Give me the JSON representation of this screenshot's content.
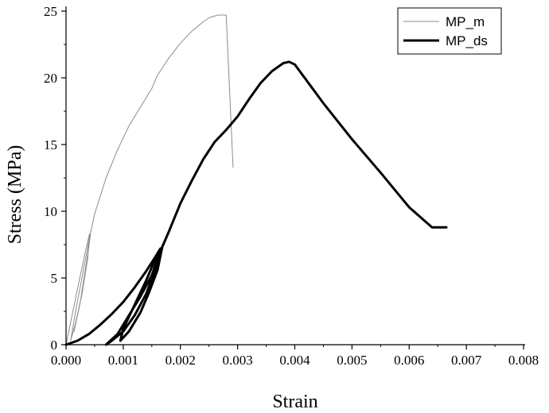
{
  "chart_data": {
    "type": "line",
    "xlabel": "Strain",
    "ylabel": "Stress (MPa)",
    "xlim": [
      0,
      0.008
    ],
    "ylim": [
      0,
      25
    ],
    "x_ticks": [
      "0.000",
      "0.001",
      "0.002",
      "0.003",
      "0.004",
      "0.005",
      "0.006",
      "0.007",
      "0.008"
    ],
    "y_ticks": [
      "0",
      "5",
      "10",
      "15",
      "20",
      "25"
    ],
    "grid": false,
    "legend_position": "top-right",
    "series": [
      {
        "name": "MP_m",
        "color": "#8c8c8c",
        "style": "thin",
        "points": [
          [
            0.0,
            0.0
          ],
          [
            0.00012,
            2.5
          ],
          [
            0.00024,
            5.0
          ],
          [
            0.00034,
            7.0
          ],
          [
            0.00041,
            8.3
          ],
          [
            0.00038,
            6.5
          ],
          [
            0.00028,
            3.8
          ],
          [
            0.00016,
            1.5
          ],
          [
            8e-05,
            0.3
          ],
          [
            0.00018,
            2.8
          ],
          [
            0.0003,
            5.5
          ],
          [
            0.0004,
            7.8
          ],
          [
            0.00043,
            8.4
          ],
          [
            0.00036,
            6.0
          ],
          [
            0.00024,
            3.0
          ],
          [
            0.00014,
            1.0
          ],
          [
            0.00026,
            3.5
          ],
          [
            0.00038,
            6.8
          ],
          [
            0.00043,
            8.4
          ],
          [
            0.0005,
            9.8
          ],
          [
            0.0007,
            12.5
          ],
          [
            0.0009,
            14.6
          ],
          [
            0.0011,
            16.4
          ],
          [
            0.0013,
            17.8
          ],
          [
            0.0015,
            19.2
          ],
          [
            0.0016,
            20.2
          ],
          [
            0.0018,
            21.5
          ],
          [
            0.002,
            22.6
          ],
          [
            0.0022,
            23.5
          ],
          [
            0.0024,
            24.2
          ],
          [
            0.0025,
            24.5
          ],
          [
            0.00265,
            24.7
          ],
          [
            0.0028,
            24.7
          ],
          [
            0.00292,
            13.3
          ]
        ]
      },
      {
        "name": "MP_ds",
        "color": "#000000",
        "style": "thick",
        "points": [
          [
            0.0,
            0.0
          ],
          [
            0.0002,
            0.3
          ],
          [
            0.0004,
            0.8
          ],
          [
            0.0006,
            1.5
          ],
          [
            0.0008,
            2.3
          ],
          [
            0.001,
            3.2
          ],
          [
            0.0012,
            4.3
          ],
          [
            0.0014,
            5.5
          ],
          [
            0.00155,
            6.5
          ],
          [
            0.00165,
            7.2
          ],
          [
            0.00155,
            5.5
          ],
          [
            0.0014,
            3.8
          ],
          [
            0.0012,
            2.2
          ],
          [
            0.001,
            1.0
          ],
          [
            0.0008,
            0.3
          ],
          [
            0.0007,
            0.0
          ],
          [
            0.0009,
            0.8
          ],
          [
            0.0011,
            2.2
          ],
          [
            0.0013,
            3.6
          ],
          [
            0.0015,
            5.2
          ],
          [
            0.00163,
            6.8
          ],
          [
            0.00168,
            7.3
          ],
          [
            0.0016,
            5.6
          ],
          [
            0.00145,
            3.9
          ],
          [
            0.0013,
            2.4
          ],
          [
            0.0011,
            1.0
          ],
          [
            0.00095,
            0.3
          ],
          [
            0.001,
            1.2
          ],
          [
            0.0012,
            3.0
          ],
          [
            0.0014,
            4.8
          ],
          [
            0.00162,
            7.0
          ],
          [
            0.00165,
            7.0
          ],
          [
            0.0018,
            8.5
          ],
          [
            0.002,
            10.6
          ],
          [
            0.0022,
            12.3
          ],
          [
            0.0024,
            13.9
          ],
          [
            0.0026,
            15.2
          ],
          [
            0.0028,
            16.1
          ],
          [
            0.003,
            17.1
          ],
          [
            0.0032,
            18.4
          ],
          [
            0.0034,
            19.6
          ],
          [
            0.0036,
            20.5
          ],
          [
            0.0038,
            21.1
          ],
          [
            0.0039,
            21.2
          ],
          [
            0.004,
            21.0
          ],
          [
            0.0045,
            18.1
          ],
          [
            0.005,
            15.4
          ],
          [
            0.0055,
            12.9
          ],
          [
            0.006,
            10.3
          ],
          [
            0.0064,
            8.8
          ],
          [
            0.0066,
            8.8
          ],
          [
            0.00665,
            8.8
          ]
        ]
      }
    ]
  }
}
